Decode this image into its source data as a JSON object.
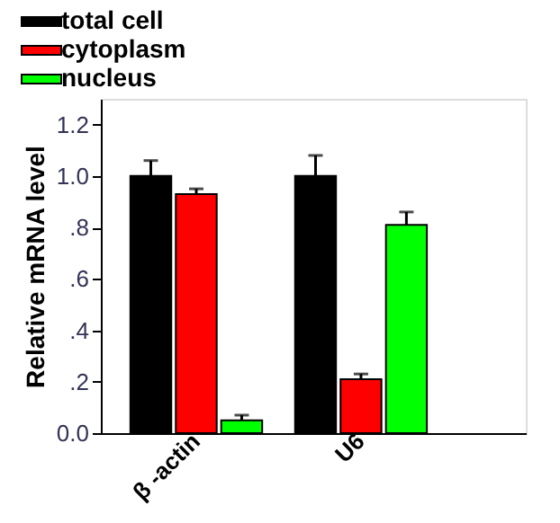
{
  "chart_data": {
    "type": "bar",
    "ylabel": "Relative mRNA level",
    "categories": [
      "β -actin",
      "U6"
    ],
    "series": [
      {
        "name": "total cell",
        "color": "#000000",
        "values": [
          1.0,
          1.0
        ],
        "errors": [
          [
            1.0,
            1.06
          ],
          [
            1.0,
            1.08
          ]
        ]
      },
      {
        "name": "cytoplasm",
        "color": "#ff0000",
        "values": [
          0.93,
          0.21
        ],
        "errors": [
          [
            0.93,
            0.95
          ],
          [
            0.21,
            0.23
          ]
        ]
      },
      {
        "name": "nucleus",
        "color": "#00ff00",
        "values": [
          0.05,
          0.81
        ],
        "errors": [
          [
            0.05,
            0.07
          ],
          [
            0.81,
            0.86
          ]
        ]
      }
    ],
    "ylim": [
      0,
      1.3
    ],
    "yticks": [
      {
        "value": 0,
        "label": "0.0"
      },
      {
        "value": 0.2,
        "label": ".2"
      },
      {
        "value": 0.4,
        "label": ".4"
      },
      {
        "value": 0.6,
        "label": ".6"
      },
      {
        "value": 0.8,
        "label": ".8"
      },
      {
        "value": 1.0,
        "label": "1.0"
      },
      {
        "value": 1.2,
        "label": "1.2"
      }
    ],
    "legend": "top left",
    "grid": false
  }
}
